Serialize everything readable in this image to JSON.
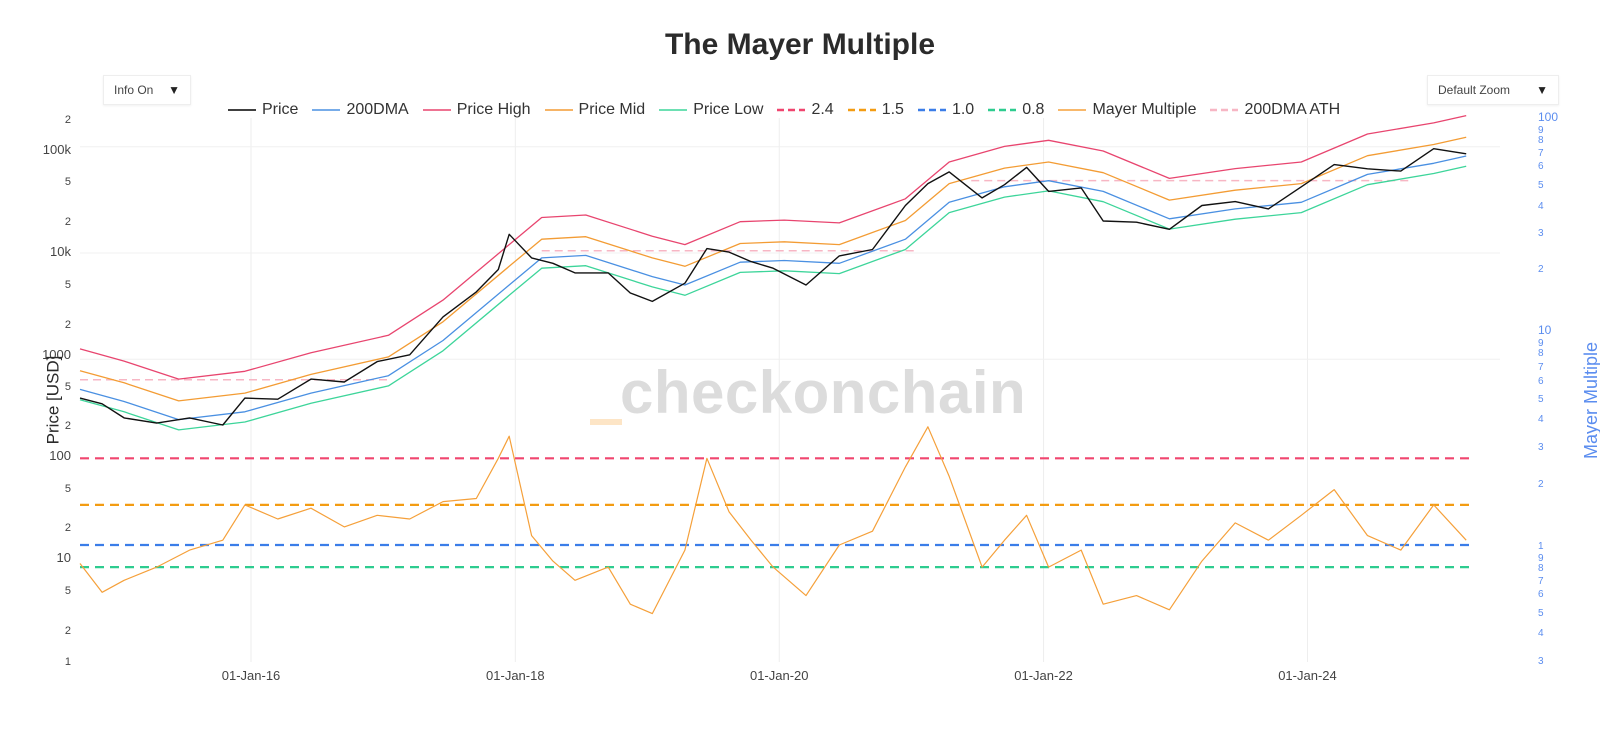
{
  "title": "The Mayer Multiple",
  "controls": {
    "info_label": "Info On",
    "zoom_label": "Default Zoom",
    "arrow": "▼"
  },
  "legend": [
    {
      "label": "Price",
      "color": "#000000",
      "dash": false
    },
    {
      "label": "200DMA",
      "color": "#4a90e2",
      "dash": false
    },
    {
      "label": "Price High",
      "color": "#e8456f",
      "dash": false
    },
    {
      "label": "Price Mid",
      "color": "#f39c34",
      "dash": false
    },
    {
      "label": "Price Low",
      "color": "#3dd59a",
      "dash": false
    },
    {
      "label": "2.4",
      "color": "#f0456f",
      "dash": true
    },
    {
      "label": "1.5",
      "color": "#f39c12",
      "dash": true
    },
    {
      "label": "1.0",
      "color": "#3b7de8",
      "dash": true
    },
    {
      "label": "0.8",
      "color": "#2ecc8f",
      "dash": true
    },
    {
      "label": "Mayer Multiple",
      "color": "#f5a03a",
      "dash": false
    },
    {
      "label": "200DMA ATH",
      "color": "#f7b6c4",
      "dash": true
    }
  ],
  "watermark": "checkonchain",
  "chart_data": {
    "type": "line",
    "title": "The Mayer Multiple",
    "ylabel_left": "Price [USD]",
    "ylabel_right": "Mayer Multiple",
    "x_ticks": [
      "01-Jan-16",
      "01-Jan-18",
      "01-Jan-20",
      "01-Jan-22",
      "01-Jan-24"
    ],
    "price_axis": {
      "scale": "log",
      "range": [
        150,
        200000
      ],
      "tick_labels": [
        "2",
        "100k",
        "5",
        "2",
        "10k",
        "5",
        "2",
        "1000",
        "5",
        "2"
      ]
    },
    "mm_axis_left": {
      "scale": "log",
      "tick_labels": [
        "100",
        "5",
        "2",
        "10",
        "5",
        "2",
        "1"
      ]
    },
    "mm_axis_right": {
      "scale": "log",
      "tick_labels": [
        "100",
        "9",
        "8",
        "7",
        "6",
        "5",
        "4",
        "3",
        "2",
        "10",
        "9",
        "8",
        "7",
        "6",
        "5",
        "4",
        "3",
        "2",
        "1",
        "9",
        "8",
        "7",
        "6",
        "5",
        "4",
        "3"
      ]
    },
    "levels": [
      2.4,
      1.5,
      1.0,
      0.8
    ],
    "ath_200dma": [
      {
        "from": "2014-09",
        "to": "2017-01",
        "value": 640
      },
      {
        "from": "2018-03",
        "to": "2021-01",
        "value": 10500
      },
      {
        "from": "2021-06",
        "to": "2024-10",
        "value": 48000
      }
    ],
    "series": [
      {
        "name": "Price",
        "x": [
          "2014-09",
          "2014-11",
          "2015-01",
          "2015-04",
          "2015-07",
          "2015-10",
          "2015-12",
          "2016-03",
          "2016-06",
          "2016-09",
          "2016-12",
          "2017-03",
          "2017-06",
          "2017-09",
          "2017-11",
          "2017-12",
          "2018-02",
          "2018-04",
          "2018-06",
          "2018-09",
          "2018-11",
          "2019-01",
          "2019-04",
          "2019-06",
          "2019-08",
          "2019-10",
          "2019-12",
          "2020-03",
          "2020-06",
          "2020-09",
          "2020-12",
          "2021-02",
          "2021-04",
          "2021-07",
          "2021-09",
          "2021-11",
          "2022-01",
          "2022-04",
          "2022-06",
          "2022-09",
          "2022-12",
          "2023-03",
          "2023-06",
          "2023-09",
          "2023-12",
          "2024-03",
          "2024-06",
          "2024-09",
          "2024-12",
          "2025-03"
        ],
        "values": [
          430,
          380,
          280,
          250,
          280,
          240,
          430,
          420,
          650,
          610,
          950,
          1100,
          2500,
          4300,
          7000,
          15000,
          9000,
          8000,
          6500,
          6500,
          4200,
          3500,
          5200,
          11000,
          10200,
          8300,
          7200,
          5000,
          9400,
          10800,
          28000,
          45000,
          58000,
          33000,
          44000,
          64000,
          38000,
          41000,
          20000,
          19500,
          16700,
          28000,
          30500,
          26000,
          42000,
          68000,
          62000,
          59000,
          96000,
          86000
        ]
      },
      {
        "name": "200DMA",
        "x": [
          "2014-09",
          "2015-01",
          "2015-06",
          "2015-12",
          "2016-06",
          "2017-01",
          "2017-06",
          "2017-12",
          "2018-03",
          "2018-07",
          "2019-01",
          "2019-04",
          "2019-09",
          "2020-01",
          "2020-06",
          "2020-12",
          "2021-04",
          "2021-09",
          "2022-01",
          "2022-06",
          "2022-12",
          "2023-06",
          "2023-12",
          "2024-06",
          "2024-12",
          "2025-03"
        ],
        "values": [
          520,
          400,
          270,
          320,
          480,
          700,
          1500,
          5000,
          9000,
          9500,
          6000,
          5000,
          8200,
          8500,
          8000,
          13500,
          30000,
          42000,
          48000,
          38000,
          21000,
          26000,
          30000,
          55000,
          70000,
          82000
        ]
      },
      {
        "name": "Price High",
        "x": [
          "2014-09",
          "2015-01",
          "2015-06",
          "2015-12",
          "2016-06",
          "2017-01",
          "2017-06",
          "2017-12",
          "2018-03",
          "2018-07",
          "2019-01",
          "2019-04",
          "2019-09",
          "2020-01",
          "2020-06",
          "2020-12",
          "2021-04",
          "2021-09",
          "2022-01",
          "2022-06",
          "2022-12",
          "2023-06",
          "2023-12",
          "2024-06",
          "2024-12",
          "2025-03"
        ],
        "values": [
          1250,
          960,
          650,
          770,
          1150,
          1680,
          3600,
          12000,
          21600,
          22800,
          14400,
          12000,
          19700,
          20400,
          19200,
          32400,
          72000,
          100800,
          115200,
          91200,
          50400,
          62400,
          72000,
          132000,
          168000,
          196800
        ]
      },
      {
        "name": "Price Mid",
        "x": [
          "2014-09",
          "2015-01",
          "2015-06",
          "2015-12",
          "2016-06",
          "2017-01",
          "2017-06",
          "2017-12",
          "2018-03",
          "2018-07",
          "2019-01",
          "2019-04",
          "2019-09",
          "2020-01",
          "2020-06",
          "2020-12",
          "2021-04",
          "2021-09",
          "2022-01",
          "2022-06",
          "2022-12",
          "2023-06",
          "2023-12",
          "2024-06",
          "2024-12",
          "2025-03"
        ],
        "values": [
          780,
          600,
          405,
          480,
          720,
          1050,
          2250,
          7500,
          13500,
          14250,
          9000,
          7500,
          12300,
          12750,
          12000,
          20250,
          45000,
          63000,
          72000,
          57000,
          31500,
          39000,
          45000,
          82500,
          105000,
          123000
        ]
      },
      {
        "name": "Price Low",
        "x": [
          "2014-09",
          "2015-01",
          "2015-06",
          "2015-12",
          "2016-06",
          "2017-01",
          "2017-06",
          "2017-12",
          "2018-03",
          "2018-07",
          "2019-01",
          "2019-04",
          "2019-09",
          "2020-01",
          "2020-06",
          "2020-12",
          "2021-04",
          "2021-09",
          "2022-01",
          "2022-06",
          "2022-12",
          "2023-06",
          "2023-12",
          "2024-06",
          "2024-12",
          "2025-03"
        ],
        "values": [
          416,
          320,
          216,
          256,
          384,
          560,
          1200,
          4000,
          7200,
          7600,
          4800,
          4000,
          6560,
          6800,
          6400,
          10800,
          24000,
          33600,
          38400,
          30400,
          16800,
          20800,
          24000,
          44000,
          56000,
          65600
        ]
      },
      {
        "name": "Mayer Multiple",
        "x": [
          "2014-09",
          "2014-11",
          "2015-01",
          "2015-04",
          "2015-07",
          "2015-10",
          "2015-12",
          "2016-03",
          "2016-06",
          "2016-09",
          "2016-12",
          "2017-03",
          "2017-06",
          "2017-09",
          "2017-11",
          "2017-12",
          "2018-02",
          "2018-04",
          "2018-06",
          "2018-09",
          "2018-11",
          "2019-01",
          "2019-04",
          "2019-06",
          "2019-08",
          "2019-10",
          "2019-12",
          "2020-03",
          "2020-06",
          "2020-09",
          "2020-12",
          "2021-02",
          "2021-04",
          "2021-07",
          "2021-09",
          "2021-11",
          "2022-01",
          "2022-04",
          "2022-06",
          "2022-09",
          "2022-12",
          "2023-03",
          "2023-06",
          "2023-09",
          "2023-12",
          "2024-03",
          "2024-06",
          "2024-09",
          "2024-12",
          "2025-03"
        ],
        "values": [
          0.83,
          0.62,
          0.7,
          0.8,
          0.95,
          1.05,
          1.5,
          1.3,
          1.45,
          1.2,
          1.35,
          1.3,
          1.55,
          1.6,
          2.4,
          3.0,
          1.1,
          0.85,
          0.7,
          0.8,
          0.55,
          0.5,
          0.95,
          2.4,
          1.4,
          1.05,
          0.8,
          0.6,
          1.0,
          1.15,
          2.2,
          3.3,
          2.0,
          0.8,
          1.05,
          1.35,
          0.8,
          0.95,
          0.55,
          0.6,
          0.52,
          0.85,
          1.25,
          1.05,
          1.35,
          1.75,
          1.1,
          0.95,
          1.5,
          1.05
        ]
      }
    ]
  }
}
